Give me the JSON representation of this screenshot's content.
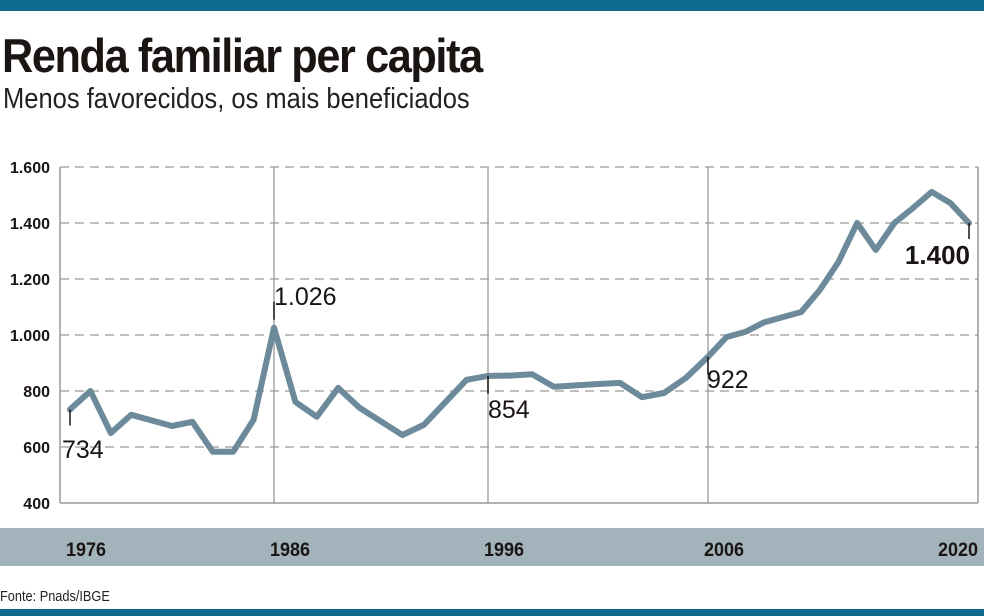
{
  "header": {
    "title": "Renda familiar per capita",
    "subtitle": "Menos favorecidos, os mais beneficiados"
  },
  "footer": {
    "source": "Fonte: Pnads/IBGE"
  },
  "colors": {
    "top_bar": "#0f6a8f",
    "line": "#6c8a99",
    "axis_band": "#a3b3bb",
    "grid": "#999999"
  },
  "chart_data": {
    "type": "line",
    "title": "Renda familiar per capita",
    "subtitle": "Menos favorecidos, os mais beneficiados",
    "xlabel": "",
    "ylabel": "",
    "ylim": [
      400,
      1600
    ],
    "xlim": [
      1976,
      2020
    ],
    "grid": "horizontal dashed, vertical solid at labeled years",
    "yticks": [
      400,
      600,
      800,
      1000,
      1200,
      1400,
      1600
    ],
    "ytick_labels": [
      "400",
      "600",
      "800",
      "1.000",
      "1.200",
      "1.400",
      "1.600"
    ],
    "xticks": [
      1976,
      1986,
      1996,
      2006,
      2020
    ],
    "xtick_labels": [
      "1976",
      "1986",
      "1996",
      "2006",
      "2020"
    ],
    "x": [
      1976,
      1977,
      1978,
      1979,
      1981,
      1982,
      1983,
      1984,
      1985,
      1986,
      1987,
      1988,
      1989,
      1990,
      1992,
      1993,
      1995,
      1996,
      1997,
      1998,
      1999,
      2001,
      2002,
      2003,
      2004,
      2005,
      2006,
      2007,
      2008,
      2009,
      2011,
      2012,
      2013,
      2014,
      2015,
      2016,
      2017,
      2018,
      2019,
      2020
    ],
    "values": [
      734,
      800,
      650,
      715,
      675,
      690,
      583,
      583,
      697,
      1026,
      761,
      708,
      811,
      740,
      643,
      679,
      840,
      854,
      855,
      860,
      815,
      825,
      829,
      778,
      793,
      847,
      922,
      993,
      1011,
      1045,
      1082,
      1161,
      1261,
      1400,
      1304,
      1400,
      1454,
      1511,
      1471,
      1400
    ],
    "annotations": [
      {
        "x": 1976,
        "value": 734,
        "label": "734"
      },
      {
        "x": 1986,
        "value": 1026,
        "label": "1.026"
      },
      {
        "x": 1996,
        "value": 854,
        "label": "854"
      },
      {
        "x": 2006,
        "value": 922,
        "label": "922"
      },
      {
        "x": 2020,
        "value": 1400,
        "label": "1.400"
      }
    ]
  }
}
